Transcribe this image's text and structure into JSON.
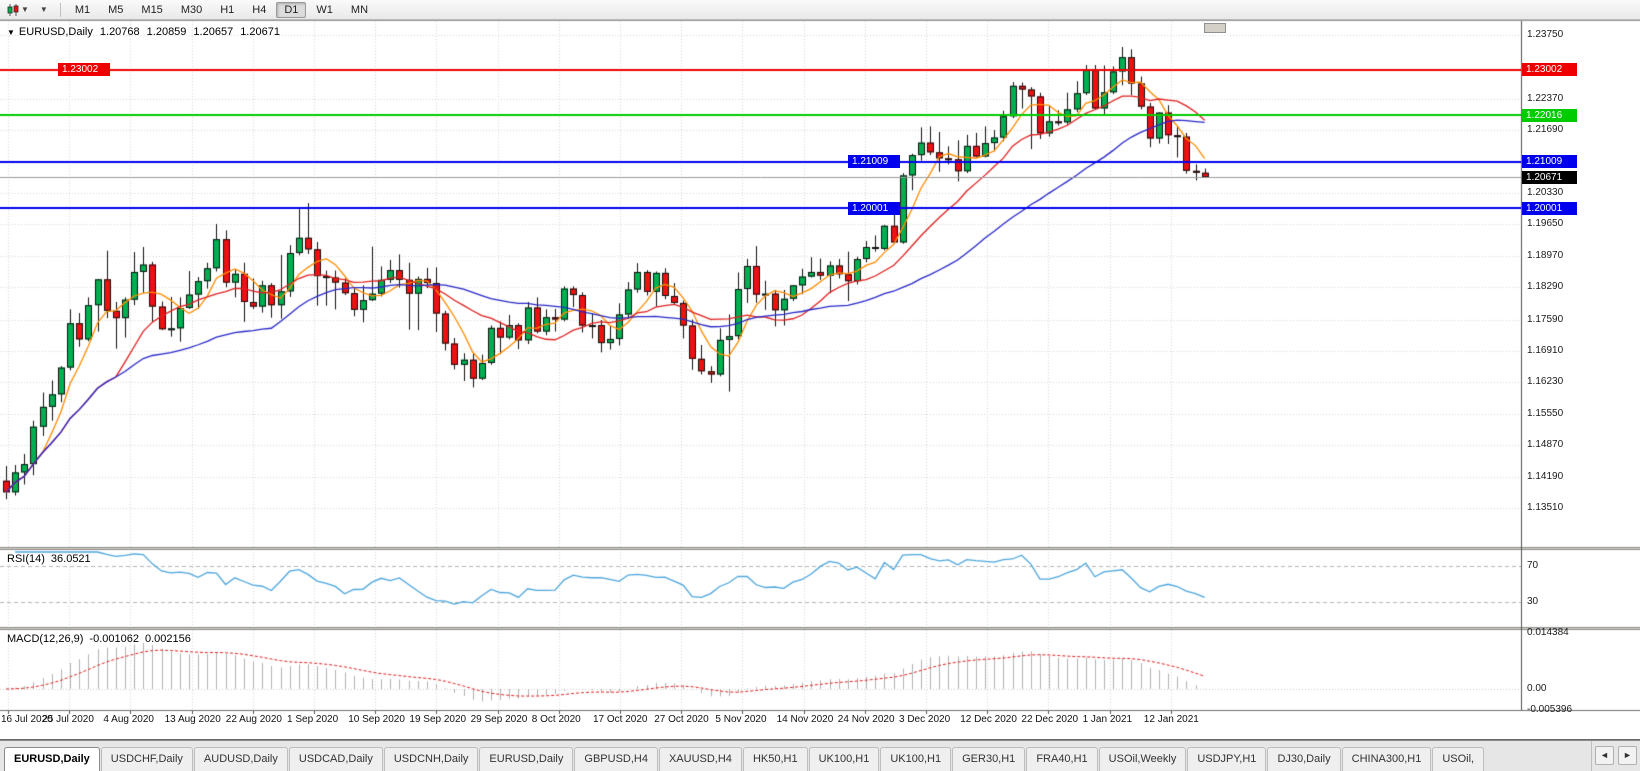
{
  "toolbar": {
    "timeframes": [
      "M1",
      "M5",
      "M15",
      "M30",
      "H1",
      "H4",
      "D1",
      "W1",
      "MN"
    ],
    "active_timeframe": "D1"
  },
  "header": {
    "collapse_icon": "▼",
    "symbol": "EURUSD,Daily",
    "open": "1.20768",
    "high": "1.20859",
    "low": "1.20657",
    "close": "1.20671"
  },
  "price_scale": {
    "labels": [
      "1.23750",
      "1.22370",
      "1.21690",
      "1.20330",
      "1.19650",
      "1.18970",
      "1.18290",
      "1.17590",
      "1.16910",
      "1.16230",
      "1.15550",
      "1.14870",
      "1.14190",
      "1.13510"
    ],
    "markers": [
      {
        "label": "1.23002",
        "price": 1.23002,
        "color": "#ee0000",
        "in_chart_x": 58,
        "current": false
      },
      {
        "label": "1.22016",
        "price": 1.22016,
        "color": "#00cc00",
        "in_chart_x": null,
        "current": false
      },
      {
        "label": "1.21009",
        "price": 1.21009,
        "color": "#0000ee",
        "in_chart_x": 848,
        "current": false
      },
      {
        "label": "1.20671",
        "price": 1.20671,
        "color": "#000000",
        "in_chart_x": null,
        "current": true
      },
      {
        "label": "1.20001",
        "price": 1.20001,
        "color": "#0000ee",
        "in_chart_x": 848,
        "current": false
      }
    ]
  },
  "rsi_panel": {
    "name": "RSI(14)",
    "value": "36.0521",
    "levels": [
      "70",
      "30"
    ],
    "line_color": "#4da6dd"
  },
  "macd_panel": {
    "name": "MACD(12,26,9)",
    "value_main": "-0.001062",
    "value_signal": "0.002156",
    "scale_labels": [
      "0.014384",
      "0.00",
      "-0.005396"
    ],
    "histogram_color": "#b2b2b2",
    "signal_color": "#e02020"
  },
  "date_axis": {
    "labels": [
      "16 Jul 2020",
      "25 Jul 2020",
      "4 Aug 2020",
      "13 Aug 2020",
      "22 Aug 2020",
      "1 Sep 2020",
      "10 Sep 2020",
      "19 Sep 2020",
      "29 Sep 2020",
      "8 Oct 2020",
      "17 Oct 2020",
      "27 Oct 2020",
      "5 Nov 2020",
      "14 Nov 2020",
      "24 Nov 2020",
      "3 Dec 2020",
      "12 Dec 2020",
      "22 Dec 2020",
      "1 Jan 2021",
      "12 Jan 2021"
    ]
  },
  "tabs": {
    "active_index": 0,
    "scroll_left": "◄",
    "scroll_right": "►",
    "items": [
      "EURUSD,Daily",
      "USDCHF,Daily",
      "AUDUSD,Daily",
      "USDCAD,Daily",
      "USDCNH,Daily",
      "EURUSD,Daily",
      "GBPUSD,H4",
      "XAUUSD,H4",
      "HK50,H1",
      "UK100,H1",
      "UK100,H1",
      "GER30,H1",
      "FRA40,H1",
      "USOil,Weekly",
      "USDJPY,H1",
      "DJ30,Daily",
      "CHINA300,H1",
      "USOil,"
    ]
  },
  "chart_data": {
    "type": "candlestick",
    "title": "EURUSD,Daily",
    "ylim": [
      1.1351,
      1.2375
    ],
    "x_labels": [
      "16 Jul 2020",
      "25 Jul 2020",
      "4 Aug 2020",
      "13 Aug 2020",
      "22 Aug 2020",
      "1 Sep 2020",
      "10 Sep 2020",
      "19 Sep 2020",
      "29 Sep 2020",
      "8 Oct 2020",
      "17 Oct 2020",
      "27 Oct 2020",
      "5 Nov 2020",
      "14 Nov 2020",
      "24 Nov 2020",
      "3 Dec 2020",
      "12 Dec 2020",
      "22 Dec 2020",
      "1 Jan 2021",
      "12 Jan 2021"
    ],
    "bull_color": "#00b050",
    "bear_color": "#ee1111",
    "current_price": 1.20671,
    "hlines": [
      {
        "price": 1.23002,
        "color": "#ee0000"
      },
      {
        "price": 1.22016,
        "color": "#00cc00"
      },
      {
        "price": 1.21009,
        "color": "#0000ee"
      },
      {
        "price": 1.20001,
        "color": "#0000ee"
      }
    ],
    "moving_averages": [
      {
        "type": "sma",
        "period": 5,
        "color": "#ff8c00"
      },
      {
        "type": "sma",
        "period": 13,
        "color": "#e02020"
      },
      {
        "type": "sma",
        "period": 30,
        "color": "#2828c8"
      }
    ],
    "indicators": {
      "rsi": {
        "period": 14,
        "current": 36.0521,
        "levels": [
          70,
          30
        ]
      },
      "macd": {
        "fast": 12,
        "slow": 26,
        "signal": 9,
        "current_main": -0.001062,
        "current_signal": 0.002156,
        "scale": [
          0.014384,
          0.0,
          -0.005396
        ]
      }
    },
    "candles": [
      [
        1.141,
        1.1442,
        1.137,
        1.1385
      ],
      [
        1.1385,
        1.1444,
        1.1378,
        1.1428
      ],
      [
        1.1428,
        1.1468,
        1.1402,
        1.1446
      ],
      [
        1.1446,
        1.154,
        1.1422,
        1.1527
      ],
      [
        1.1527,
        1.1601,
        1.1507,
        1.157
      ],
      [
        1.157,
        1.1627,
        1.154,
        1.1597
      ],
      [
        1.1597,
        1.1658,
        1.158,
        1.1655
      ],
      [
        1.1655,
        1.1781,
        1.1649,
        1.1751
      ],
      [
        1.1751,
        1.1773,
        1.17,
        1.1716
      ],
      [
        1.1716,
        1.1807,
        1.1712,
        1.179
      ],
      [
        1.179,
        1.1847,
        1.1733,
        1.1846
      ],
      [
        1.1846,
        1.1908,
        1.1762,
        1.1778
      ],
      [
        1.1778,
        1.1797,
        1.1696,
        1.1762
      ],
      [
        1.1762,
        1.1807,
        1.172,
        1.1802
      ],
      [
        1.1802,
        1.1905,
        1.179,
        1.1862
      ],
      [
        1.1862,
        1.1916,
        1.1817,
        1.1878
      ],
      [
        1.1878,
        1.1884,
        1.1754,
        1.1787
      ],
      [
        1.1787,
        1.1798,
        1.1736,
        1.1738
      ],
      [
        1.1738,
        1.1808,
        1.1722,
        1.174
      ],
      [
        1.174,
        1.1807,
        1.1711,
        1.1784
      ],
      [
        1.1784,
        1.1864,
        1.1782,
        1.1813
      ],
      [
        1.1813,
        1.1851,
        1.1782,
        1.1842
      ],
      [
        1.1842,
        1.1882,
        1.1826,
        1.187
      ],
      [
        1.187,
        1.1966,
        1.1863,
        1.1933
      ],
      [
        1.1933,
        1.1952,
        1.1829,
        1.1839
      ],
      [
        1.1839,
        1.1868,
        1.1807,
        1.1858
      ],
      [
        1.1858,
        1.1882,
        1.1754,
        1.1797
      ],
      [
        1.1797,
        1.1848,
        1.1782,
        1.1787
      ],
      [
        1.1787,
        1.1843,
        1.1774,
        1.1833
      ],
      [
        1.1833,
        1.1838,
        1.1763,
        1.179
      ],
      [
        1.179,
        1.1899,
        1.1761,
        1.182
      ],
      [
        1.182,
        1.192,
        1.1808,
        1.1903
      ],
      [
        1.1903,
        1.1998,
        1.1898,
        1.1936
      ],
      [
        1.1936,
        1.2011,
        1.1901,
        1.1911
      ],
      [
        1.1911,
        1.1927,
        1.1789,
        1.1853
      ],
      [
        1.1853,
        1.1865,
        1.1789,
        1.185
      ],
      [
        1.185,
        1.1865,
        1.1781,
        1.1839
      ],
      [
        1.1839,
        1.1848,
        1.1812,
        1.1816
      ],
      [
        1.1816,
        1.1827,
        1.1766,
        1.178
      ],
      [
        1.178,
        1.1833,
        1.1753,
        1.1801
      ],
      [
        1.1801,
        1.1917,
        1.1799,
        1.1815
      ],
      [
        1.1815,
        1.1874,
        1.1809,
        1.1845
      ],
      [
        1.1845,
        1.1888,
        1.1838,
        1.1866
      ],
      [
        1.1866,
        1.19,
        1.1828,
        1.1845
      ],
      [
        1.1845,
        1.1882,
        1.1737,
        1.1815
      ],
      [
        1.1815,
        1.1852,
        1.1736,
        1.1847
      ],
      [
        1.1847,
        1.1871,
        1.1827,
        1.1838
      ],
      [
        1.1838,
        1.1872,
        1.1732,
        1.1772
      ],
      [
        1.1772,
        1.1778,
        1.1692,
        1.1707
      ],
      [
        1.1707,
        1.1719,
        1.1651,
        1.1661
      ],
      [
        1.1661,
        1.1686,
        1.1626,
        1.1672
      ],
      [
        1.1672,
        1.1685,
        1.1612,
        1.1631
      ],
      [
        1.1631,
        1.1683,
        1.1628,
        1.1665
      ],
      [
        1.1665,
        1.1746,
        1.1661,
        1.1741
      ],
      [
        1.1741,
        1.1755,
        1.1684,
        1.172
      ],
      [
        1.172,
        1.1769,
        1.1716,
        1.1747
      ],
      [
        1.1747,
        1.1751,
        1.1695,
        1.1714
      ],
      [
        1.1714,
        1.1797,
        1.1706,
        1.1785
      ],
      [
        1.1785,
        1.1807,
        1.1729,
        1.1733
      ],
      [
        1.1733,
        1.1781,
        1.1725,
        1.1764
      ],
      [
        1.1764,
        1.1782,
        1.1733,
        1.1759
      ],
      [
        1.1759,
        1.1831,
        1.1755,
        1.1826
      ],
      [
        1.1826,
        1.1831,
        1.1786,
        1.1812
      ],
      [
        1.1812,
        1.1818,
        1.1731,
        1.1746
      ],
      [
        1.1746,
        1.1772,
        1.1718,
        1.1747
      ],
      [
        1.1747,
        1.1758,
        1.1688,
        1.1708
      ],
      [
        1.1708,
        1.1746,
        1.1694,
        1.1717
      ],
      [
        1.1717,
        1.1794,
        1.1703,
        1.177
      ],
      [
        1.177,
        1.184,
        1.176,
        1.1824
      ],
      [
        1.1824,
        1.1881,
        1.1817,
        1.1862
      ],
      [
        1.1862,
        1.1866,
        1.1811,
        1.1819
      ],
      [
        1.1819,
        1.1863,
        1.1787,
        1.186
      ],
      [
        1.186,
        1.187,
        1.1803,
        1.181
      ],
      [
        1.181,
        1.1838,
        1.1793,
        1.1795
      ],
      [
        1.1795,
        1.18,
        1.1718,
        1.1746
      ],
      [
        1.1746,
        1.1759,
        1.165,
        1.1674
      ],
      [
        1.1674,
        1.1704,
        1.164,
        1.1647
      ],
      [
        1.1647,
        1.1658,
        1.1622,
        1.164
      ],
      [
        1.164,
        1.174,
        1.1636,
        1.1715
      ],
      [
        1.1715,
        1.177,
        1.1603,
        1.1723
      ],
      [
        1.1723,
        1.1861,
        1.1716,
        1.1825
      ],
      [
        1.1825,
        1.189,
        1.1795,
        1.1875
      ],
      [
        1.1875,
        1.1918,
        1.1795,
        1.1813
      ],
      [
        1.1813,
        1.1843,
        1.178,
        1.1815
      ],
      [
        1.1815,
        1.1823,
        1.1744,
        1.1779
      ],
      [
        1.1779,
        1.1823,
        1.1746,
        1.1804
      ],
      [
        1.1804,
        1.1834,
        1.1799,
        1.1833
      ],
      [
        1.1833,
        1.1869,
        1.1814,
        1.1852
      ],
      [
        1.1852,
        1.1894,
        1.185,
        1.1862
      ],
      [
        1.1862,
        1.1891,
        1.1845,
        1.1854
      ],
      [
        1.1854,
        1.1885,
        1.1816,
        1.1876
      ],
      [
        1.1876,
        1.189,
        1.1848,
        1.1857
      ],
      [
        1.1857,
        1.1906,
        1.1799,
        1.1842
      ],
      [
        1.1842,
        1.1895,
        1.1835,
        1.189
      ],
      [
        1.189,
        1.1929,
        1.1883,
        1.1916
      ],
      [
        1.1916,
        1.1941,
        1.1906,
        1.1912
      ],
      [
        1.1912,
        1.1964,
        1.1909,
        1.1962
      ],
      [
        1.1962,
        1.2003,
        1.1923,
        1.1926
      ],
      [
        1.1926,
        1.2076,
        1.1923,
        1.2071
      ],
      [
        1.2071,
        1.2118,
        1.2039,
        1.2115
      ],
      [
        1.2115,
        1.2175,
        1.2103,
        1.2142
      ],
      [
        1.2142,
        1.2177,
        1.2115,
        1.2121
      ],
      [
        1.2121,
        1.2165,
        1.2079,
        1.2108
      ],
      [
        1.2108,
        1.2134,
        1.2095,
        1.2106
      ],
      [
        1.2106,
        1.2147,
        1.2058,
        1.208
      ],
      [
        1.208,
        1.2159,
        1.2076,
        1.2135
      ],
      [
        1.2135,
        1.2163,
        1.211,
        1.2112
      ],
      [
        1.2112,
        1.2177,
        1.211,
        1.2141
      ],
      [
        1.2141,
        1.2169,
        1.2123,
        1.2153
      ],
      [
        1.2153,
        1.2211,
        1.2145,
        1.2199
      ],
      [
        1.2199,
        1.2273,
        1.2195,
        1.2265
      ],
      [
        1.2265,
        1.2272,
        1.2216,
        1.2257
      ],
      [
        1.2257,
        1.2262,
        1.2128,
        1.2242
      ],
      [
        1.2242,
        1.225,
        1.215,
        1.2162
      ],
      [
        1.2162,
        1.2222,
        1.2155,
        1.2188
      ],
      [
        1.2188,
        1.2212,
        1.2179,
        1.2186
      ],
      [
        1.2186,
        1.225,
        1.2181,
        1.2214
      ],
      [
        1.2214,
        1.2275,
        1.2208,
        1.2249
      ],
      [
        1.2249,
        1.231,
        1.2245,
        1.2299
      ],
      [
        1.2299,
        1.231,
        1.2214,
        1.2216
      ],
      [
        1.2216,
        1.2309,
        1.22,
        1.2251
      ],
      [
        1.2251,
        1.2307,
        1.2247,
        1.2296
      ],
      [
        1.2296,
        1.2349,
        1.2266,
        1.2327
      ],
      [
        1.2327,
        1.2344,
        1.2245,
        1.227
      ],
      [
        1.227,
        1.2285,
        1.2214,
        1.222
      ],
      [
        1.222,
        1.2228,
        1.2132,
        1.2151
      ],
      [
        1.2151,
        1.2208,
        1.214,
        1.2207
      ],
      [
        1.2207,
        1.2223,
        1.2139,
        1.2158
      ],
      [
        1.2158,
        1.2177,
        1.211,
        1.2155
      ],
      [
        1.2155,
        1.2163,
        1.2075,
        1.2081
      ],
      [
        1.2081,
        1.2095,
        1.206,
        1.20768
      ],
      [
        1.20768,
        1.20859,
        1.20657,
        1.20671
      ]
    ]
  }
}
